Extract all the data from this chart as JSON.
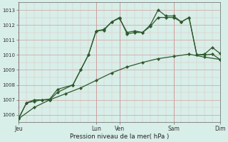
{
  "title": "",
  "xlabel": "Pression niveau de la mer( hPa )",
  "bg_color": "#d8eee8",
  "grid_major_color": "#d0a0a0",
  "grid_minor_color": "#e0c0c0",
  "line_color": "#2d5a2d",
  "ylim": [
    1005.5,
    1013.5
  ],
  "yticks": [
    1006,
    1007,
    1008,
    1009,
    1010,
    1011,
    1012,
    1013
  ],
  "xtick_labels": [
    "Jeu",
    "",
    "",
    "",
    "",
    "",
    "",
    "",
    "",
    "",
    "Lun",
    "Ven",
    "",
    "",
    "",
    "",
    "",
    "",
    "",
    "Sam",
    "",
    "",
    "",
    "",
    "Dim"
  ],
  "day_tick_labels": [
    "Jeu",
    "Lun",
    "Ven",
    "Sam",
    "Dim"
  ],
  "day_tick_positions": [
    0,
    10,
    13,
    20,
    26
  ],
  "line1_x": [
    0,
    1,
    2,
    3,
    4,
    5,
    7,
    8,
    9,
    10,
    11,
    12,
    13,
    14,
    15,
    16,
    17,
    18,
    19,
    20,
    21,
    22,
    23,
    24,
    25,
    26
  ],
  "line1_y": [
    1005.8,
    1006.8,
    1007.0,
    1007.0,
    1007.05,
    1007.7,
    1008.0,
    1009.0,
    1010.0,
    1011.6,
    1011.65,
    1012.2,
    1012.45,
    1011.5,
    1011.6,
    1011.5,
    1012.0,
    1013.0,
    1012.6,
    1012.6,
    1012.2,
    1012.5,
    1010.0,
    1010.05,
    1010.5,
    1010.1
  ],
  "line2_x": [
    0,
    1,
    2,
    3,
    4,
    5,
    7,
    8,
    9,
    10,
    11,
    12,
    13,
    14,
    15,
    16,
    17,
    18,
    19,
    20,
    21,
    22,
    23,
    24,
    25,
    26
  ],
  "line2_y": [
    1005.75,
    1006.8,
    1006.9,
    1007.0,
    1007.0,
    1007.5,
    1008.0,
    1009.0,
    1010.0,
    1011.6,
    1011.7,
    1012.2,
    1012.5,
    1011.4,
    1011.5,
    1011.5,
    1011.9,
    1012.5,
    1012.5,
    1012.5,
    1012.2,
    1012.5,
    1010.0,
    1010.0,
    1010.05,
    1009.7
  ],
  "line3_x": [
    0,
    2,
    4,
    6,
    8,
    10,
    12,
    14,
    16,
    18,
    20,
    22,
    24,
    26
  ],
  "line3_y": [
    1005.75,
    1006.5,
    1007.0,
    1007.4,
    1007.8,
    1008.3,
    1008.8,
    1009.2,
    1009.5,
    1009.75,
    1009.9,
    1010.05,
    1009.85,
    1009.7
  ],
  "xlim": [
    0,
    26
  ]
}
